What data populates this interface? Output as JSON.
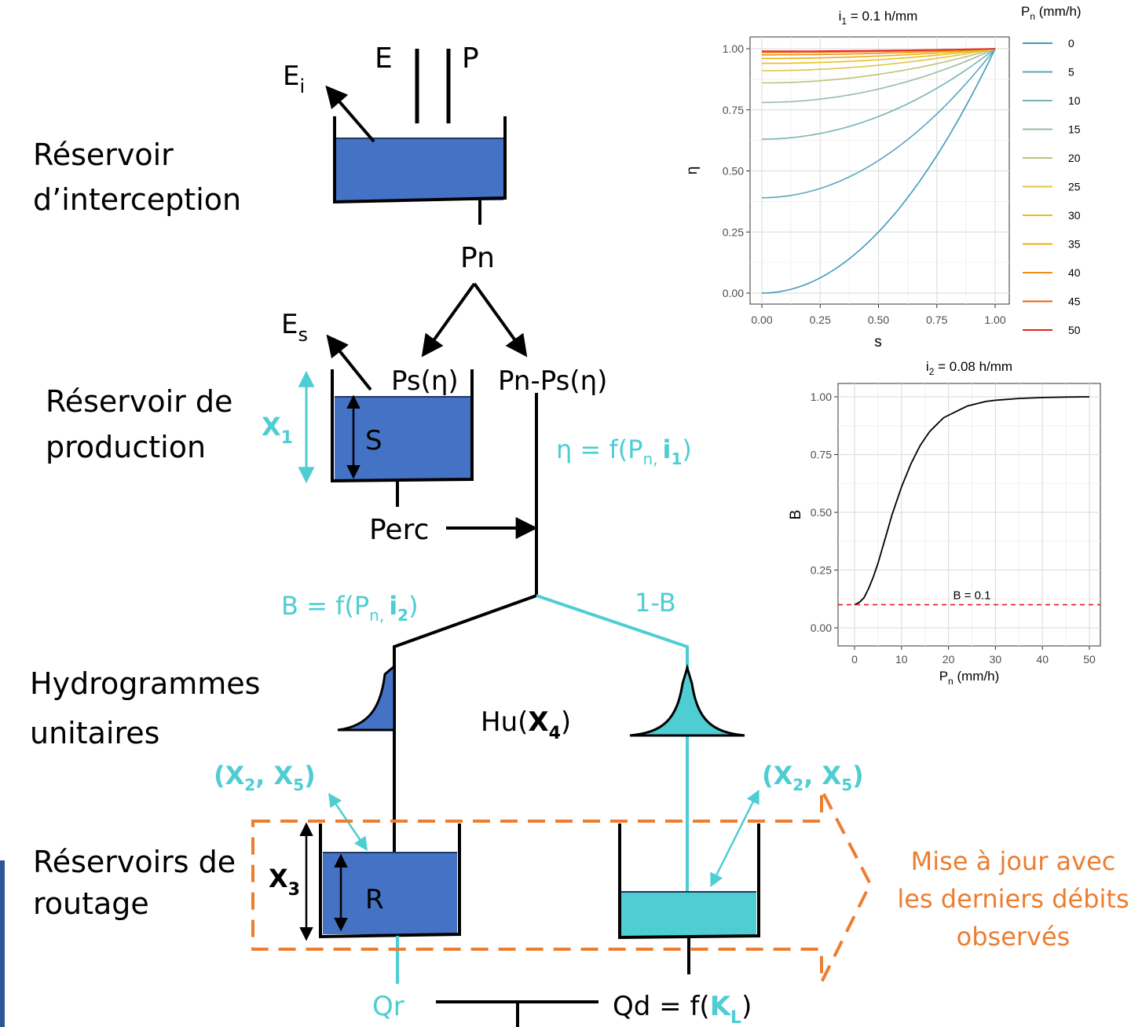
{
  "colors": {
    "reservoir_blue": "#4472C4",
    "cyan": "#4ECDD3",
    "orange": "#ED7D31",
    "black": "#000000",
    "gray_grid": "#E5E5E5",
    "dashed_red": "#E41A1C"
  },
  "diagram": {
    "side_labels": {
      "interception_l1": "Réservoir",
      "interception_l2": "d’interception",
      "production_l1": "Réservoir de",
      "production_l2": "production",
      "hydro_l1": "Hydrogrammes",
      "hydro_l2": "unitaires",
      "routing_l1": "Réservoirs de",
      "routing_l2": "routage"
    },
    "flux": {
      "E": "E",
      "P": "P",
      "Ei": "E",
      "Ei_sub": "i",
      "Pn": "Pn",
      "Es": "E",
      "Es_sub": "s",
      "Ps": "Ps(η)",
      "PnPs": "Pn-Ps(η)",
      "S": "S",
      "X1": "X",
      "X1_sub": "1",
      "eta_eq": "η = f(P",
      "eta_sub": "n,",
      "eta_i": "i",
      "eta_i_sub": "1",
      "eta_close": ")",
      "Perc": "Perc",
      "B_eq": "B = f(P",
      "B_sub": "n,",
      "B_i": "i",
      "B_i_sub": "2",
      "B_close": ")",
      "oneB": "1-B",
      "Hu_open": "Hu(",
      "Hu_X": "X",
      "Hu_sub": "4",
      "Hu_close": ")",
      "X25_open": "(X",
      "X25_sub2": "2",
      "X25_mid": ", X",
      "X25_sub5": "5",
      "X25_close": ")",
      "X3": "X",
      "X3_sub": "3",
      "R": "R",
      "Qr": "Qr",
      "Qd": "Qd = f(",
      "KL": "K",
      "KL_sub": "L",
      "Qd_close": ")"
    },
    "update_note": [
      "Mise à jour  avec",
      "les derniers débits",
      "observés"
    ]
  },
  "chart_data": [
    {
      "type": "line",
      "title": "i",
      "title_sub": "1",
      "title_rest": " = 0.1 h/mm",
      "xlabel": "s",
      "ylabel": "η",
      "xlim": [
        0,
        1
      ],
      "ylim": [
        0,
        1
      ],
      "x_ticks": [
        "0.00",
        "0.25",
        "0.50",
        "0.75",
        "1.00"
      ],
      "y_ticks": [
        "0.00",
        "0.25",
        "0.50",
        "0.75",
        "1.00"
      ],
      "grid": true,
      "legend_title": "P",
      "legend_title_sub": "n",
      "legend_title_rest": " (mm/h)",
      "legend_placement": "right",
      "series": [
        {
          "name": "0",
          "y0": 0.0,
          "color": "#3E9BB8"
        },
        {
          "name": "5",
          "y0": 0.39,
          "color": "#5BA7BD"
        },
        {
          "name": "10",
          "y0": 0.63,
          "color": "#78B2B3"
        },
        {
          "name": "15",
          "y0": 0.78,
          "color": "#9BBBA0"
        },
        {
          "name": "20",
          "y0": 0.86,
          "color": "#BFC27A"
        },
        {
          "name": "25",
          "y0": 0.91,
          "color": "#E1C445"
        },
        {
          "name": "30",
          "y0": 0.94,
          "color": "#EBBE1C"
        },
        {
          "name": "35",
          "y0": 0.96,
          "color": "#EDAE12"
        },
        {
          "name": "40",
          "y0": 0.975,
          "color": "#EC8F10"
        },
        {
          "name": "45",
          "y0": 0.985,
          "color": "#E96312"
        },
        {
          "name": "50",
          "y0": 0.99,
          "color": "#E6221A"
        }
      ]
    },
    {
      "type": "line",
      "title": "i",
      "title_sub": "2",
      "title_rest": " = 0.08 h/mm",
      "xlabel": "P",
      "xlabel_sub": "n",
      "xlabel_rest": " (mm/h)",
      "ylabel": "B",
      "xlim": [
        0,
        50
      ],
      "ylim": [
        0,
        1
      ],
      "x_ticks": [
        "0",
        "10",
        "20",
        "30",
        "40",
        "50"
      ],
      "y_ticks": [
        "0.00",
        "0.25",
        "0.50",
        "0.75",
        "1.00"
      ],
      "grid": true,
      "series": [
        {
          "x": [
            0,
            1,
            2,
            3,
            4,
            5,
            6,
            7,
            8,
            9,
            10,
            11,
            12,
            13,
            14,
            15,
            16,
            17,
            18,
            19,
            20,
            22,
            24,
            26,
            28,
            30,
            35,
            40,
            45,
            50
          ],
          "y": [
            0.1,
            0.11,
            0.13,
            0.17,
            0.22,
            0.28,
            0.35,
            0.42,
            0.49,
            0.55,
            0.61,
            0.66,
            0.71,
            0.75,
            0.79,
            0.82,
            0.85,
            0.87,
            0.89,
            0.91,
            0.92,
            0.94,
            0.96,
            0.97,
            0.98,
            0.985,
            0.993,
            0.997,
            0.999,
            1.0
          ]
        }
      ],
      "hline": {
        "y": 0.1,
        "label": "B = 0.1"
      }
    }
  ]
}
